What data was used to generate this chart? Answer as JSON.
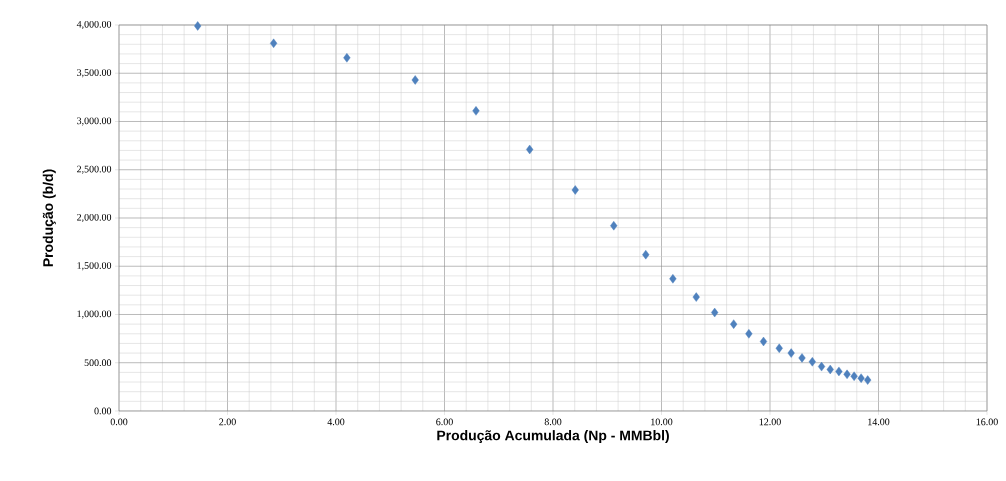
{
  "chart_data": {
    "type": "scatter",
    "xlabel": "Produção Acumulada (Np - MMBbl)",
    "ylabel": "Produção (b/d)",
    "x": [
      1.45,
      2.85,
      4.2,
      5.46,
      6.58,
      7.57,
      8.41,
      9.12,
      9.71,
      10.21,
      10.64,
      10.98,
      11.33,
      11.61,
      11.88,
      12.17,
      12.39,
      12.59,
      12.78,
      12.95,
      13.11,
      13.27,
      13.42,
      13.55,
      13.68,
      13.8
    ],
    "values": [
      3990,
      3810,
      3660,
      3430,
      3110,
      2710,
      2290,
      1920,
      1620,
      1370,
      1180,
      1020,
      900,
      800,
      720,
      650,
      600,
      550,
      510,
      460,
      430,
      410,
      380,
      360,
      340,
      320
    ],
    "color": "#4f81bd",
    "marker": "diamond",
    "xlim": [
      0,
      16
    ],
    "ylim": [
      0,
      4000
    ],
    "xticks": [
      {
        "value": 0,
        "label": "0.00"
      },
      {
        "value": 2,
        "label": "2.00"
      },
      {
        "value": 4,
        "label": "4.00"
      },
      {
        "value": 6,
        "label": "6.00"
      },
      {
        "value": 8,
        "label": "8.00"
      },
      {
        "value": 10,
        "label": "10.00"
      },
      {
        "value": 12,
        "label": "12.00"
      },
      {
        "value": 14,
        "label": "14.00"
      },
      {
        "value": 16,
        "label": "16.00"
      }
    ],
    "yticks": [
      {
        "value": 0,
        "label": "0.00"
      },
      {
        "value": 500,
        "label": "500.00"
      },
      {
        "value": 1000,
        "label": "1,000.00"
      },
      {
        "value": 1500,
        "label": "1,500.00"
      },
      {
        "value": 2000,
        "label": "2,000.00"
      },
      {
        "value": 2500,
        "label": "2,500.00"
      },
      {
        "value": 3000,
        "label": "3,000.00"
      },
      {
        "value": 3500,
        "label": "3,500.00"
      },
      {
        "value": 4000,
        "label": "4,000.00"
      }
    ],
    "grid": true
  }
}
